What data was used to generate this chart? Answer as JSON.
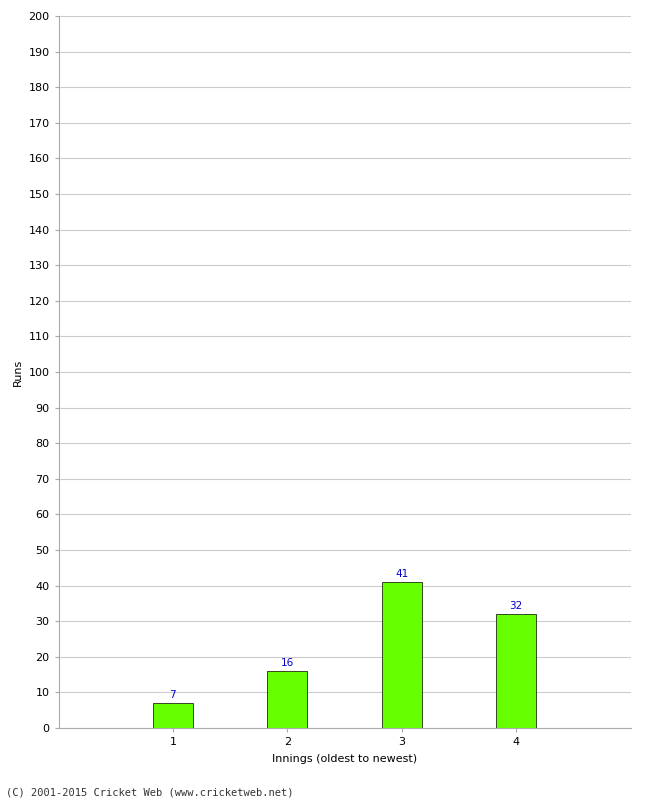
{
  "categories": [
    "1",
    "2",
    "3",
    "4"
  ],
  "values": [
    7,
    16,
    41,
    32
  ],
  "bar_color": "#66FF00",
  "bar_edge_color": "#000000",
  "label_color": "#0000CC",
  "ylabel": "Runs",
  "xlabel": "Innings (oldest to newest)",
  "ylim": [
    0,
    200
  ],
  "yticks": [
    0,
    10,
    20,
    30,
    40,
    50,
    60,
    70,
    80,
    90,
    100,
    110,
    120,
    130,
    140,
    150,
    160,
    170,
    180,
    190,
    200
  ],
  "background_color": "#ffffff",
  "grid_color": "#cccccc",
  "footer": "(C) 2001-2015 Cricket Web (www.cricketweb.net)",
  "label_fontsize": 7.5,
  "axis_label_fontsize": 8,
  "tick_fontsize": 8,
  "footer_fontsize": 7.5,
  "bar_width": 0.35
}
